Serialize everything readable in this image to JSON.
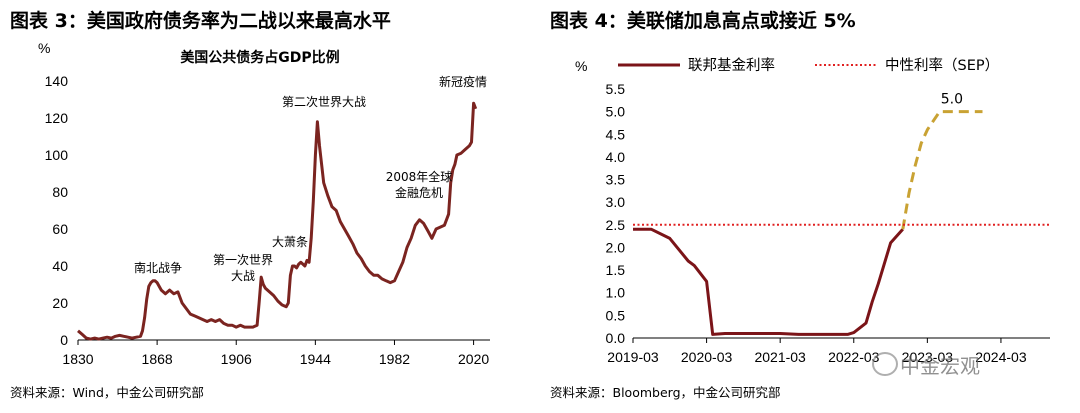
{
  "left": {
    "figure_title": "图表 3：美国政府债务率为二战以来最高水平",
    "source": "资料来源：Wind，中金公司研究部"
  },
  "right": {
    "figure_title": "图表 4：美联储加息高点或接近 5%",
    "source": "资料来源：Bloomberg，中金公司研究部"
  },
  "watermark": "中金宏观",
  "watermark_icon": "wechat-icon",
  "chart_data": [
    {
      "type": "line",
      "title": "美国公共债务占GDP比例",
      "ylabel": "%",
      "xlabel": "",
      "xlim": [
        1830,
        2025
      ],
      "ylim": [
        0,
        140
      ],
      "x_ticks": [
        1830,
        1868,
        1906,
        1944,
        1982,
        2020
      ],
      "y_ticks": [
        0,
        20,
        40,
        60,
        80,
        100,
        120,
        140
      ],
      "grid": false,
      "line_color": "#7b2420",
      "series": [
        {
          "name": "",
          "x": [
            1830,
            1832,
            1834,
            1836,
            1838,
            1840,
            1842,
            1844,
            1846,
            1848,
            1850,
            1852,
            1854,
            1856,
            1858,
            1860,
            1861,
            1862,
            1863,
            1864,
            1865,
            1866,
            1867,
            1868,
            1870,
            1872,
            1874,
            1876,
            1878,
            1880,
            1882,
            1884,
            1886,
            1888,
            1890,
            1892,
            1894,
            1896,
            1898,
            1900,
            1902,
            1904,
            1906,
            1908,
            1910,
            1912,
            1914,
            1916,
            1917,
            1918,
            1919,
            1920,
            1922,
            1924,
            1926,
            1928,
            1930,
            1931,
            1932,
            1933,
            1934,
            1935,
            1936,
            1937,
            1938,
            1939,
            1940,
            1941,
            1942,
            1943,
            1944,
            1945,
            1946,
            1947,
            1948,
            1950,
            1952,
            1954,
            1956,
            1958,
            1960,
            1962,
            1964,
            1966,
            1968,
            1970,
            1972,
            1974,
            1976,
            1978,
            1980,
            1982,
            1984,
            1986,
            1988,
            1990,
            1992,
            1994,
            1996,
            1998,
            2000,
            2002,
            2004,
            2006,
            2008,
            2009,
            2010,
            2011,
            2012,
            2014,
            2016,
            2018,
            2019,
            2020,
            2021
          ],
          "y": [
            5,
            3,
            1,
            0.5,
            1,
            0.5,
            1,
            1.5,
            1,
            2,
            2.5,
            2,
            1.5,
            1,
            1.5,
            2,
            5,
            12,
            22,
            29,
            31,
            32,
            32,
            31,
            27,
            25,
            27,
            25,
            26,
            20,
            17,
            14,
            13,
            12,
            11,
            10,
            11,
            10,
            11,
            9,
            8,
            8,
            7,
            8,
            7,
            7,
            7,
            8,
            20,
            34,
            30,
            28,
            26,
            24,
            21,
            19,
            18,
            20,
            35,
            40,
            40,
            39,
            41,
            42,
            41,
            40,
            43,
            42,
            55,
            75,
            100,
            118,
            105,
            95,
            85,
            78,
            72,
            70,
            64,
            60,
            56,
            52,
            47,
            44,
            40,
            37,
            35,
            35,
            33,
            32,
            31,
            32,
            37,
            42,
            50,
            55,
            62,
            65,
            63,
            59,
            55,
            60,
            61,
            62,
            68,
            85,
            92,
            95,
            100,
            101,
            103,
            105,
            107,
            128,
            125
          ]
        }
      ],
      "annotations": [
        {
          "line1": "南北战争",
          "line2": ""
        },
        {
          "line1": "第一次世界",
          "line2": "大战"
        },
        {
          "line1": "大萧条",
          "line2": ""
        },
        {
          "line1": "第二次世界大战",
          "line2": ""
        },
        {
          "line1": "2008年全球",
          "line2": "金融危机"
        },
        {
          "line1": "新冠疫情",
          "line2": ""
        }
      ]
    },
    {
      "type": "line",
      "title": "",
      "ylabel": "%",
      "xlabel": "",
      "ylim": [
        0,
        5.5
      ],
      "y_ticks": [
        0.0,
        0.5,
        1.0,
        1.5,
        2.0,
        2.5,
        3.0,
        3.5,
        4.0,
        4.5,
        5.0,
        5.5
      ],
      "x_ticks": [
        "2019-03",
        "2020-03",
        "2021-03",
        "2022-03",
        "2023-03",
        "2024-03"
      ],
      "legend_position": "top",
      "grid": false,
      "series": [
        {
          "name": "联邦基金利率",
          "color": "#7b1418",
          "style": "solid",
          "x": [
            "2019-03",
            "2019-06",
            "2019-09",
            "2019-12",
            "2020-01",
            "2020-03",
            "2020-04",
            "2020-06",
            "2021-03",
            "2021-06",
            "2022-02",
            "2022-03",
            "2022-05",
            "2022-06",
            "2022-07",
            "2022-09",
            "2022-11"
          ],
          "y": [
            2.4,
            2.4,
            2.2,
            1.7,
            1.6,
            1.25,
            0.08,
            0.1,
            0.1,
            0.08,
            0.08,
            0.12,
            0.33,
            0.8,
            1.2,
            2.1,
            2.4
          ]
        },
        {
          "name": "",
          "color": "#c9a233",
          "style": "dashed",
          "x": [
            "2022-11",
            "2022-12",
            "2023-01",
            "2023-02",
            "2023-03",
            "2023-05",
            "2023-06",
            "2023-09",
            "2023-12"
          ],
          "y": [
            2.4,
            3.2,
            3.8,
            4.3,
            4.6,
            5.0,
            5.0,
            5.0,
            5.0
          ]
        },
        {
          "name": "中性利率（SEP）",
          "color": "#e02020",
          "style": "dotted",
          "x": [
            "2019-03",
            "2024-11"
          ],
          "y": [
            2.5,
            2.5
          ]
        }
      ],
      "annotations": [
        {
          "text": "5.0"
        }
      ]
    }
  ]
}
